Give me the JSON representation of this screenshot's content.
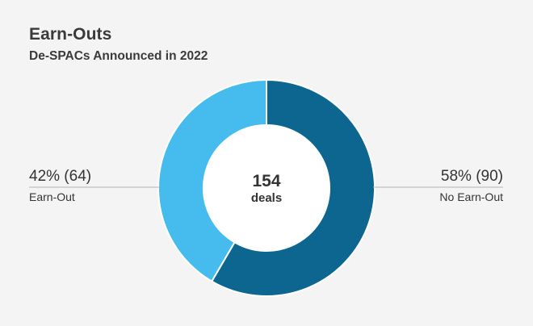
{
  "chart_data": {
    "type": "pie",
    "title": "Earn-Outs",
    "subtitle": "De-SPACs Announced in 2022",
    "center": {
      "value": "154",
      "label": "deals"
    },
    "slices": [
      {
        "name": "No Earn-Out",
        "percent": 58,
        "count": 90,
        "value_label": "58% (90)",
        "color": "#0d6690"
      },
      {
        "name": "Earn-Out",
        "percent": 42,
        "count": 64,
        "value_label": "42% (64)",
        "color": "#45bbee"
      }
    ]
  }
}
